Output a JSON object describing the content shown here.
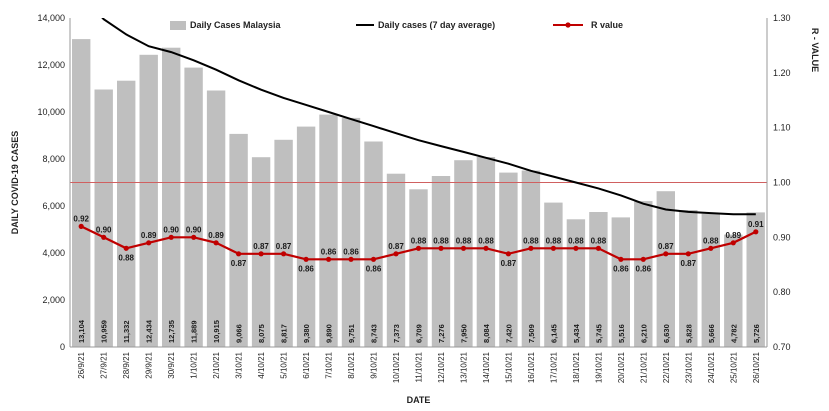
{
  "chart_data": {
    "type": "bar",
    "categories": [
      "26/9/21",
      "27/9/21",
      "28/9/21",
      "29/9/21",
      "30/9/21",
      "1/10/21",
      "2/10/21",
      "3/10/21",
      "4/10/21",
      "5/10/21",
      "6/10/21",
      "7/10/21",
      "8/10/21",
      "9/10/21",
      "10/10/21",
      "11/10/21",
      "12/10/21",
      "13/10/21",
      "14/10/21",
      "15/10/21",
      "16/10/21",
      "17/10/21",
      "18/10/21",
      "19/10/21",
      "20/10/21",
      "21/10/21",
      "22/10/21",
      "23/10/21",
      "24/10/21",
      "25/10/21",
      "26/10/21"
    ],
    "series": [
      {
        "name": "Daily Cases Malaysia",
        "type": "bar",
        "axis": "left",
        "color": "#bfbfbf",
        "values": [
          13104,
          10959,
          11332,
          12434,
          12735,
          11889,
          10915,
          9066,
          8075,
          8817,
          9380,
          9890,
          9751,
          8743,
          7373,
          6709,
          7276,
          7950,
          8084,
          7420,
          7509,
          6145,
          5434,
          5745,
          5516,
          6210,
          6630,
          5828,
          5666,
          4782,
          5726
        ],
        "labels": [
          "13,104",
          "10,959",
          "11,332",
          "12,434",
          "12,735",
          "11,889",
          "10,915",
          "9,066",
          "8,075",
          "8,817",
          "9,380",
          "9,890",
          "9,751",
          "8,743",
          "7,373",
          "6,709",
          "7,276",
          "7,950",
          "8,084",
          "7,420",
          "7,509",
          "6,145",
          "5,434",
          "5,745",
          "5,516",
          "6,210",
          "6,630",
          "5,828",
          "5,666",
          "4,782",
          "5,726"
        ]
      },
      {
        "name": "Daily cases (7 day average)",
        "type": "line",
        "axis": "left",
        "color": "#000000",
        "values": [
          15000,
          13950,
          13300,
          12800,
          12550,
          12200,
          11800,
          11350,
          10950,
          10600,
          10300,
          10000,
          9700,
          9400,
          9100,
          8800,
          8550,
          8300,
          8050,
          7800,
          7500,
          7250,
          7000,
          6750,
          6450,
          6100,
          5850,
          5750,
          5700,
          5650,
          5650
        ]
      },
      {
        "name": "R value",
        "type": "line",
        "axis": "right",
        "color": "#c00000",
        "values": [
          0.92,
          0.9,
          0.88,
          0.89,
          0.9,
          0.9,
          0.89,
          0.87,
          0.87,
          0.87,
          0.86,
          0.86,
          0.86,
          0.86,
          0.87,
          0.88,
          0.88,
          0.88,
          0.88,
          0.87,
          0.88,
          0.88,
          0.88,
          0.88,
          0.86,
          0.86,
          0.87,
          0.87,
          0.88,
          0.89,
          0.91
        ],
        "labels": [
          "0.92",
          "0.90",
          "0.88",
          "0.89",
          "0.90",
          "0.90",
          "0.89",
          "0.87",
          "0.87",
          "0.87",
          "0.86",
          "0.86",
          "0.86",
          "0.86",
          "0.87",
          "0.88",
          "0.88",
          "0.88",
          "0.88",
          "0.87",
          "0.88",
          "0.88",
          "0.88",
          "0.88",
          "0.86",
          "0.86",
          "0.87",
          "0.87",
          "0.88",
          "0.89",
          "0.91"
        ]
      }
    ],
    "reference_line": {
      "axis": "right",
      "value": 1.0,
      "color": "#d06060"
    },
    "xlabel": "DATE",
    "ylabel": "DAILY COVID-19 CASES",
    "y2label": "R - VALUE",
    "ylim": [
      0,
      14000
    ],
    "y2lim": [
      0.7,
      1.3
    ],
    "yticks": [
      "0",
      "2,000",
      "4,000",
      "6,000",
      "8,000",
      "10,000",
      "12,000",
      "14,000"
    ],
    "y2ticks": [
      "0.70",
      "0.80",
      "0.90",
      "1.00",
      "1.10",
      "1.20",
      "1.30"
    ],
    "legend_position": "top",
    "grid": false
  }
}
